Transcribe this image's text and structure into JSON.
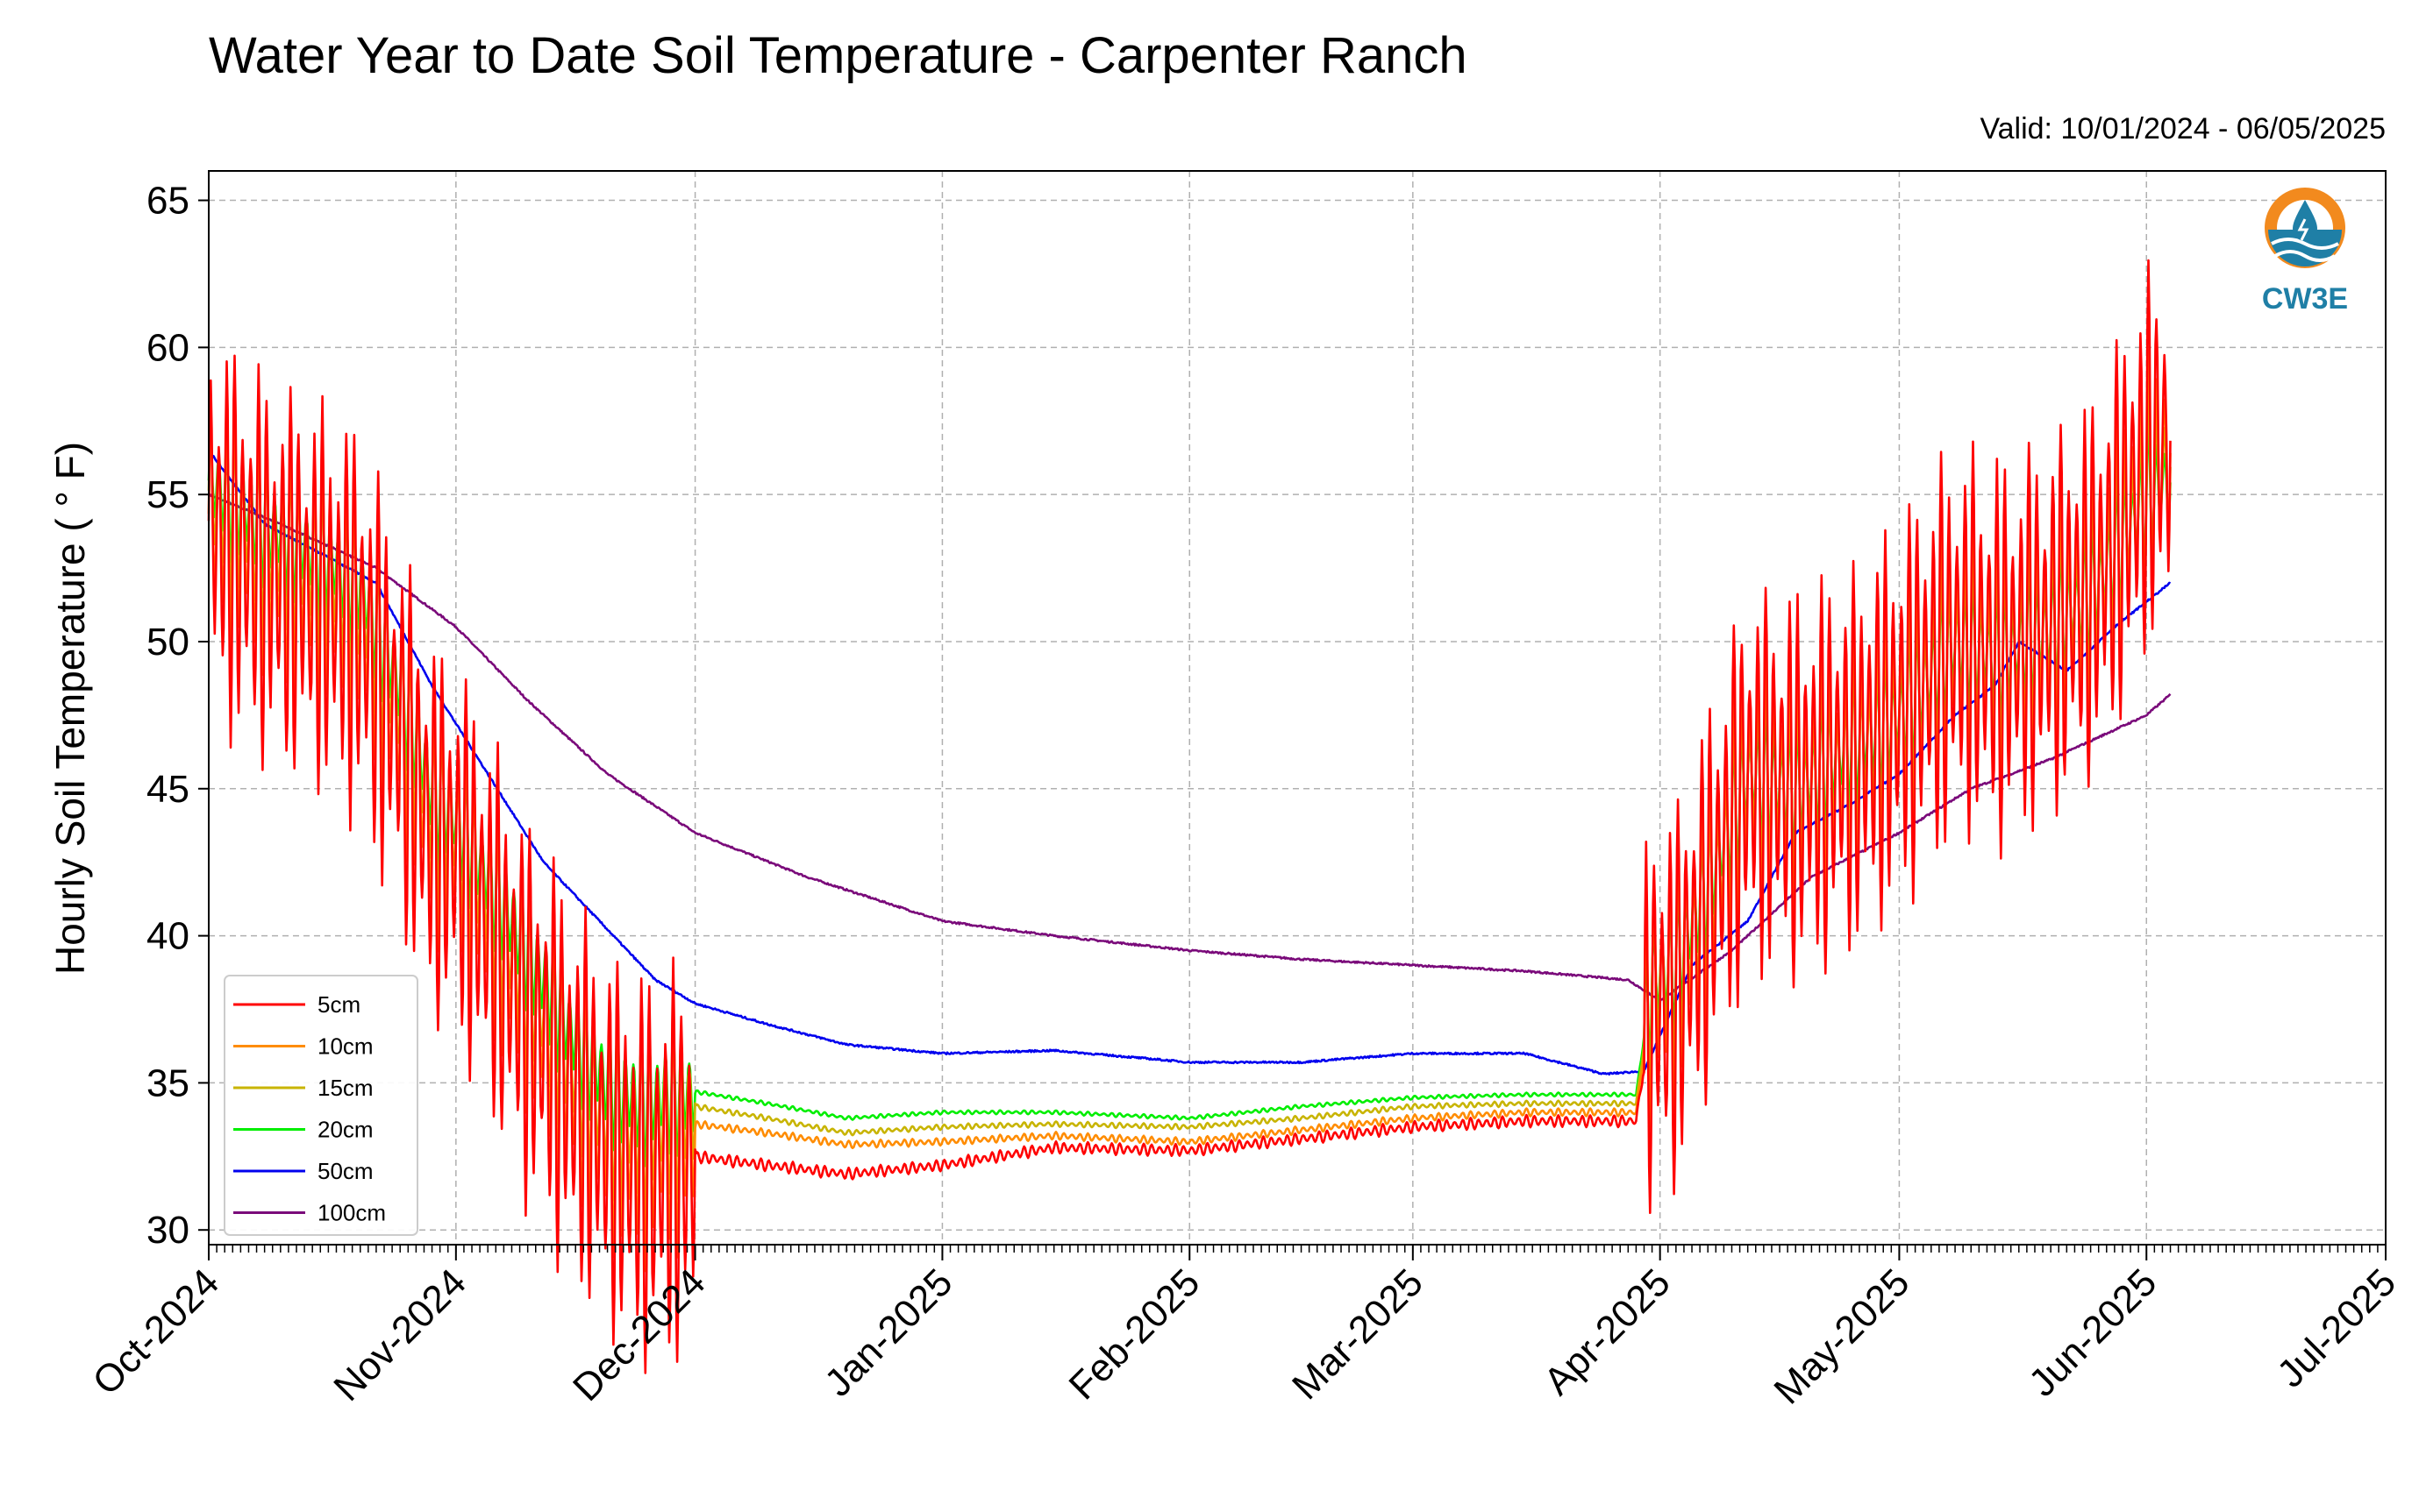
{
  "chart_data": {
    "type": "line",
    "title": "Water Year to Date Soil Temperature - Carpenter Ranch",
    "subtitle": "Valid: 10/01/2024 - 06/05/2025",
    "ylabel": "Hourly Soil Temperature ( ° F)",
    "xlabel": "",
    "ylim": [
      29.5,
      66
    ],
    "yticks": [
      30,
      35,
      40,
      45,
      50,
      55,
      60,
      65
    ],
    "xlim": [
      "2024-10-01",
      "2025-07-01"
    ],
    "x_tick_labels": [
      "Oct-2024",
      "Nov-2024",
      "Dec-2024",
      "Jan-2025",
      "Feb-2025",
      "Mar-2025",
      "Apr-2025",
      "May-2025",
      "Jun-2025",
      "Jul-2025"
    ],
    "x_tick_dates": [
      "2024-10-01",
      "2024-11-01",
      "2024-12-01",
      "2025-01-01",
      "2025-02-01",
      "2025-03-01",
      "2025-04-01",
      "2025-05-01",
      "2025-06-01",
      "2025-07-01"
    ],
    "grid": true,
    "legend_position": "lower-left",
    "series": [
      {
        "name": "5cm",
        "color": "#ff0000",
        "diurnal_amplitude": 5.5,
        "x": [
          "2024-10-01",
          "2024-10-08",
          "2024-10-15",
          "2024-10-20",
          "2024-10-25",
          "2024-10-29",
          "2024-11-01",
          "2024-11-05",
          "2024-11-08",
          "2024-11-12",
          "2024-11-16",
          "2024-11-20",
          "2024-11-24",
          "2024-11-28",
          "2024-12-01",
          "2024-12-10",
          "2024-12-20",
          "2025-01-01",
          "2025-01-15",
          "2025-02-01",
          "2025-02-15",
          "2025-03-01",
          "2025-03-15",
          "2025-03-29",
          "2025-03-31",
          "2025-04-03",
          "2025-04-08",
          "2025-04-12",
          "2025-04-18",
          "2025-04-25",
          "2025-05-01",
          "2025-05-08",
          "2025-05-14",
          "2025-05-20",
          "2025-05-26",
          "2025-06-01",
          "2025-06-04"
        ],
        "y": [
          54.0,
          52.5,
          51.5,
          50.5,
          47.0,
          43.5,
          43.0,
          40.5,
          38.5,
          36.5,
          34.5,
          33.0,
          32.0,
          32.2,
          32.5,
          32.2,
          31.9,
          32.2,
          32.8,
          32.7,
          33.1,
          33.5,
          33.7,
          33.7,
          37.5,
          38.0,
          42.0,
          45.5,
          45.0,
          46.0,
          47.5,
          50.0,
          49.5,
          50.5,
          52.0,
          56.0,
          57.0
        ]
      },
      {
        "name": "10cm",
        "color": "#ff8c00",
        "diurnal_amplitude": 3.5,
        "x": [
          "2024-10-01",
          "2024-10-08",
          "2024-10-15",
          "2024-10-20",
          "2024-10-25",
          "2024-10-29",
          "2024-11-01",
          "2024-11-05",
          "2024-11-08",
          "2024-11-12",
          "2024-11-16",
          "2024-11-20",
          "2024-11-24",
          "2024-11-28",
          "2024-12-01",
          "2024-12-10",
          "2024-12-20",
          "2025-01-01",
          "2025-01-15",
          "2025-02-01",
          "2025-02-15",
          "2025-03-01",
          "2025-03-15",
          "2025-03-29",
          "2025-03-31",
          "2025-04-03",
          "2025-04-08",
          "2025-04-12",
          "2025-04-18",
          "2025-04-25",
          "2025-05-01",
          "2025-05-08",
          "2025-05-14",
          "2025-05-20",
          "2025-05-26",
          "2025-06-01",
          "2025-06-04"
        ],
        "y": [
          54.5,
          53.0,
          52.0,
          51.0,
          47.5,
          44.0,
          43.3,
          41.0,
          39.0,
          37.0,
          35.0,
          33.5,
          33.0,
          33.3,
          33.6,
          33.3,
          32.9,
          33.0,
          33.2,
          33.0,
          33.4,
          33.8,
          34.0,
          34.0,
          38.0,
          38.5,
          42.0,
          45.5,
          45.0,
          46.0,
          47.5,
          50.0,
          49.5,
          50.5,
          52.0,
          55.5,
          56.5
        ]
      },
      {
        "name": "15cm",
        "color": "#c8b400",
        "diurnal_amplitude": 2.5,
        "x": [
          "2024-10-01",
          "2024-10-08",
          "2024-10-15",
          "2024-10-20",
          "2024-10-25",
          "2024-10-29",
          "2024-11-01",
          "2024-11-05",
          "2024-11-08",
          "2024-11-12",
          "2024-11-16",
          "2024-11-20",
          "2024-11-24",
          "2024-11-28",
          "2024-12-01",
          "2024-12-10",
          "2024-12-20",
          "2025-01-01",
          "2025-01-15",
          "2025-02-01",
          "2025-02-15",
          "2025-03-01",
          "2025-03-15",
          "2025-03-29",
          "2025-03-31",
          "2025-04-03",
          "2025-04-08",
          "2025-04-12",
          "2025-04-18",
          "2025-04-25",
          "2025-05-01",
          "2025-05-08",
          "2025-05-14",
          "2025-05-20",
          "2025-05-26",
          "2025-06-01",
          "2025-06-04"
        ],
        "y": [
          55.0,
          53.5,
          52.5,
          51.5,
          48.0,
          44.5,
          43.6,
          41.5,
          39.5,
          37.5,
          35.5,
          34.0,
          33.6,
          33.9,
          34.2,
          33.8,
          33.3,
          33.5,
          33.6,
          33.5,
          33.8,
          34.2,
          34.3,
          34.3,
          38.3,
          38.8,
          42.0,
          45.5,
          45.0,
          46.0,
          47.5,
          49.8,
          49.5,
          50.5,
          52.0,
          55.2,
          56.0
        ]
      },
      {
        "name": "20cm",
        "color": "#00ee00",
        "diurnal_amplitude": 1.8,
        "x": [
          "2024-10-01",
          "2024-10-08",
          "2024-10-15",
          "2024-10-20",
          "2024-10-25",
          "2024-10-29",
          "2024-11-01",
          "2024-11-05",
          "2024-11-08",
          "2024-11-12",
          "2024-11-16",
          "2024-11-20",
          "2024-11-24",
          "2024-11-28",
          "2024-12-01",
          "2024-12-10",
          "2024-12-20",
          "2025-01-01",
          "2025-01-15",
          "2025-02-01",
          "2025-02-15",
          "2025-03-01",
          "2025-03-15",
          "2025-03-29",
          "2025-03-31",
          "2025-04-03",
          "2025-04-08",
          "2025-04-12",
          "2025-04-18",
          "2025-04-25",
          "2025-05-01",
          "2025-05-08",
          "2025-05-14",
          "2025-05-20",
          "2025-05-26",
          "2025-06-01",
          "2025-06-04"
        ],
        "y": [
          55.5,
          54.0,
          53.0,
          52.0,
          48.5,
          45.0,
          44.0,
          42.0,
          40.5,
          38.5,
          36.5,
          35.0,
          34.4,
          34.6,
          34.7,
          34.3,
          33.8,
          34.0,
          34.0,
          33.8,
          34.2,
          34.5,
          34.6,
          34.6,
          38.5,
          39.0,
          42.5,
          45.5,
          45.0,
          46.5,
          47.5,
          50.0,
          49.5,
          50.5,
          52.0,
          55.0,
          55.5
        ]
      },
      {
        "name": "50cm",
        "color": "#0000ee",
        "diurnal_amplitude": 0,
        "x": [
          "2024-10-01",
          "2024-10-08",
          "2024-10-15",
          "2024-10-22",
          "2024-10-29",
          "2024-11-05",
          "2024-11-12",
          "2024-11-19",
          "2024-11-26",
          "2024-12-01",
          "2024-12-10",
          "2024-12-20",
          "2025-01-01",
          "2025-01-15",
          "2025-02-01",
          "2025-02-15",
          "2025-03-01",
          "2025-03-15",
          "2025-03-25",
          "2025-03-30",
          "2025-04-05",
          "2025-04-12",
          "2025-04-18",
          "2025-04-25",
          "2025-05-01",
          "2025-05-08",
          "2025-05-13",
          "2025-05-16",
          "2025-05-22",
          "2025-05-28",
          "2025-06-04"
        ],
        "y": [
          56.5,
          54.0,
          53.0,
          52.0,
          48.5,
          45.5,
          42.5,
          40.5,
          38.5,
          37.7,
          37.0,
          36.3,
          36.0,
          36.1,
          35.7,
          35.7,
          36.0,
          36.0,
          35.3,
          35.4,
          39.0,
          40.5,
          43.5,
          44.5,
          45.5,
          47.5,
          48.5,
          50.0,
          49.0,
          50.5,
          52.0
        ]
      },
      {
        "name": "100cm",
        "color": "#7a0a7a",
        "diurnal_amplitude": 0,
        "x": [
          "2024-10-01",
          "2024-10-10",
          "2024-10-22",
          "2024-11-01",
          "2024-11-10",
          "2024-11-20",
          "2024-12-01",
          "2024-12-15",
          "2025-01-01",
          "2025-01-15",
          "2025-02-01",
          "2025-02-15",
          "2025-03-01",
          "2025-03-15",
          "2025-03-28",
          "2025-04-01",
          "2025-04-10",
          "2025-04-20",
          "2025-05-01",
          "2025-05-10",
          "2025-05-20",
          "2025-06-01",
          "2025-06-04"
        ],
        "y": [
          55.0,
          54.0,
          52.5,
          50.5,
          48.0,
          45.5,
          43.5,
          42.0,
          40.5,
          40.0,
          39.5,
          39.2,
          39.0,
          38.8,
          38.5,
          37.8,
          39.5,
          42.0,
          43.5,
          45.0,
          46.0,
          47.5,
          48.2
        ]
      }
    ]
  },
  "logo": {
    "text": "CW3E",
    "colors": {
      "orange": "#f28a1e",
      "blue": "#1f7fa6"
    },
    "icon": "water-drop-logo-icon"
  },
  "colors": {
    "grid": "#b0b0b0",
    "axes": "#000000",
    "background": "#ffffff"
  }
}
